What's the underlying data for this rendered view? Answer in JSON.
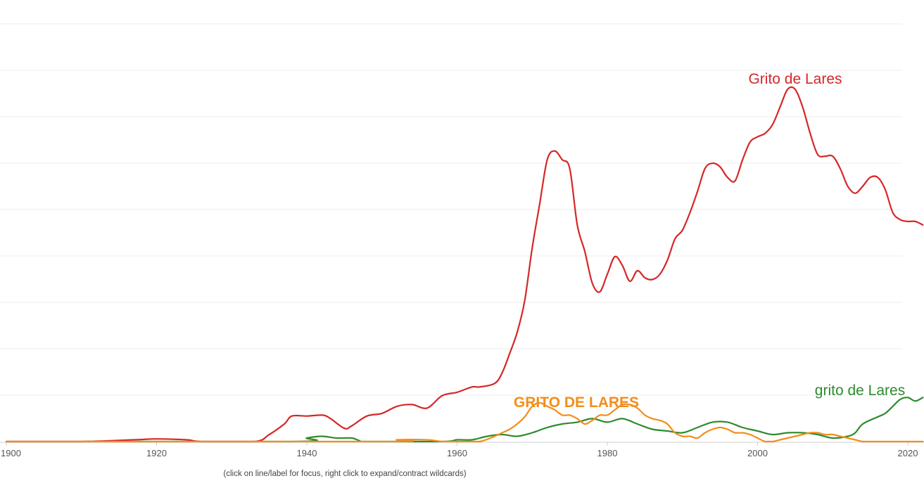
{
  "chart_data": {
    "type": "line",
    "title": "",
    "xlabel": "",
    "ylabel": "",
    "xlim": [
      1900,
      2022
    ],
    "x_ticks": [
      "1900",
      "1920",
      "1940",
      "1960",
      "1980",
      "2000",
      "2020"
    ],
    "grid": true,
    "legend": "inline labels",
    "series": [
      {
        "name": "Grito de Lares",
        "color": "#d62728",
        "x": [
          1900,
          1910,
          1917,
          1920,
          1924,
          1926,
          1933,
          1935,
          1937,
          1938,
          1940,
          1942,
          1943,
          1945,
          1946,
          1948,
          1950,
          1952,
          1954,
          1956,
          1958,
          1960,
          1962,
          1963,
          1965,
          1966,
          1967,
          1968,
          1969,
          1970,
          1971,
          1972,
          1973,
          1974,
          1975,
          1976,
          1977,
          1978,
          1979,
          1980,
          1981,
          1982,
          1983,
          1984,
          1985,
          1986,
          1987,
          1988,
          1989,
          1990,
          1991,
          1992,
          1993,
          1994,
          1995,
          1996,
          1997,
          1998,
          1999,
          2000,
          2001,
          2002,
          2003,
          2004,
          2005,
          2006,
          2007,
          2008,
          2009,
          2010,
          2011,
          2012,
          2013,
          2014,
          2015,
          2016,
          2017,
          2018,
          2019,
          2020,
          2021,
          2022
        ],
        "y": [
          0.0,
          0.0,
          0.1,
          0.15,
          0.1,
          0.0,
          0.0,
          0.4,
          1.0,
          1.45,
          1.45,
          1.5,
          1.35,
          0.75,
          0.9,
          1.45,
          1.6,
          2.0,
          2.1,
          1.9,
          2.6,
          2.8,
          3.1,
          3.1,
          3.3,
          3.9,
          5.0,
          6.2,
          8.0,
          11.0,
          13.5,
          16.0,
          16.5,
          16.0,
          15.5,
          12.3,
          10.8,
          9.0,
          8.5,
          9.5,
          10.5,
          10.0,
          9.1,
          9.7,
          9.3,
          9.2,
          9.5,
          10.3,
          11.5,
          12.0,
          13.0,
          14.2,
          15.5,
          15.8,
          15.6,
          15.0,
          14.8,
          16.0,
          17.0,
          17.3,
          17.5,
          18.0,
          19.0,
          20.0,
          20.0,
          19.0,
          17.5,
          16.3,
          16.2,
          16.2,
          15.5,
          14.5,
          14.1,
          14.5,
          15.0,
          15.0,
          14.3,
          13.0,
          12.6,
          12.5,
          12.5,
          12.3
        ]
      },
      {
        "name": "GRITO DE LARES",
        "color": "#f28e1c",
        "x": [
          1900,
          1950,
          1952,
          1956,
          1958,
          1960,
          1963,
          1965,
          1966,
          1967,
          1968,
          1969,
          1970,
          1971,
          1972,
          1973,
          1974,
          1975,
          1976,
          1977,
          1978,
          1979,
          1980,
          1981,
          1982,
          1983,
          1984,
          1985,
          1986,
          1987,
          1988,
          1989,
          1990,
          1991,
          1992,
          1993,
          1994,
          1995,
          1996,
          1997,
          1998,
          1999,
          2000,
          2001,
          2002,
          2003,
          2004,
          2005,
          2006,
          2007,
          2008,
          2009,
          2010,
          2011,
          2012,
          2013,
          2014,
          2015,
          2016,
          2017,
          2018,
          2019,
          2020,
          2021,
          2022
        ],
        "y": [
          0.0,
          0.0,
          0.1,
          0.1,
          0.0,
          0.0,
          0.0,
          0.3,
          0.5,
          0.7,
          1.0,
          1.4,
          2.0,
          2.2,
          2.0,
          1.8,
          1.5,
          1.5,
          1.3,
          1.0,
          1.2,
          1.5,
          1.5,
          1.8,
          2.1,
          2.1,
          1.9,
          1.5,
          1.3,
          1.2,
          1.0,
          0.5,
          0.3,
          0.3,
          0.2,
          0.5,
          0.7,
          0.8,
          0.7,
          0.5,
          0.5,
          0.4,
          0.2,
          0.0,
          0.0,
          0.1,
          0.2,
          0.3,
          0.4,
          0.5,
          0.5,
          0.4,
          0.4,
          0.3,
          0.2,
          0.1,
          0.0,
          0.0,
          0.0,
          0.0,
          0.0,
          0.0,
          0.0,
          0.0,
          0.0
        ]
      },
      {
        "name": "grito de Lares",
        "color": "#2e8b2e",
        "x": [
          1900,
          1938,
          1940,
          1942,
          1944,
          1946,
          1947,
          1948,
          1958,
          1960,
          1962,
          1964,
          1966,
          1968,
          1970,
          1972,
          1974,
          1976,
          1978,
          1980,
          1982,
          1984,
          1986,
          1988,
          1990,
          1992,
          1994,
          1996,
          1998,
          2000,
          2002,
          2004,
          2006,
          2008,
          2010,
          2012,
          2013,
          2014,
          2016,
          2017,
          2018,
          2019,
          2020,
          2021,
          2022
        ],
        "y": [
          0.0,
          0.0,
          0.2,
          0.3,
          0.2,
          0.2,
          0.05,
          0.0,
          0.0,
          0.1,
          0.1,
          0.3,
          0.4,
          0.3,
          0.5,
          0.8,
          1.0,
          1.1,
          1.3,
          1.1,
          1.3,
          1.0,
          0.7,
          0.6,
          0.5,
          0.8,
          1.1,
          1.1,
          0.8,
          0.6,
          0.4,
          0.5,
          0.5,
          0.4,
          0.2,
          0.3,
          0.5,
          1.0,
          1.4,
          1.6,
          2.0,
          2.4,
          2.5,
          2.3,
          2.5
        ]
      }
    ]
  },
  "footnote": "(click on line/label for focus, right click to expand/contract wildcards)"
}
